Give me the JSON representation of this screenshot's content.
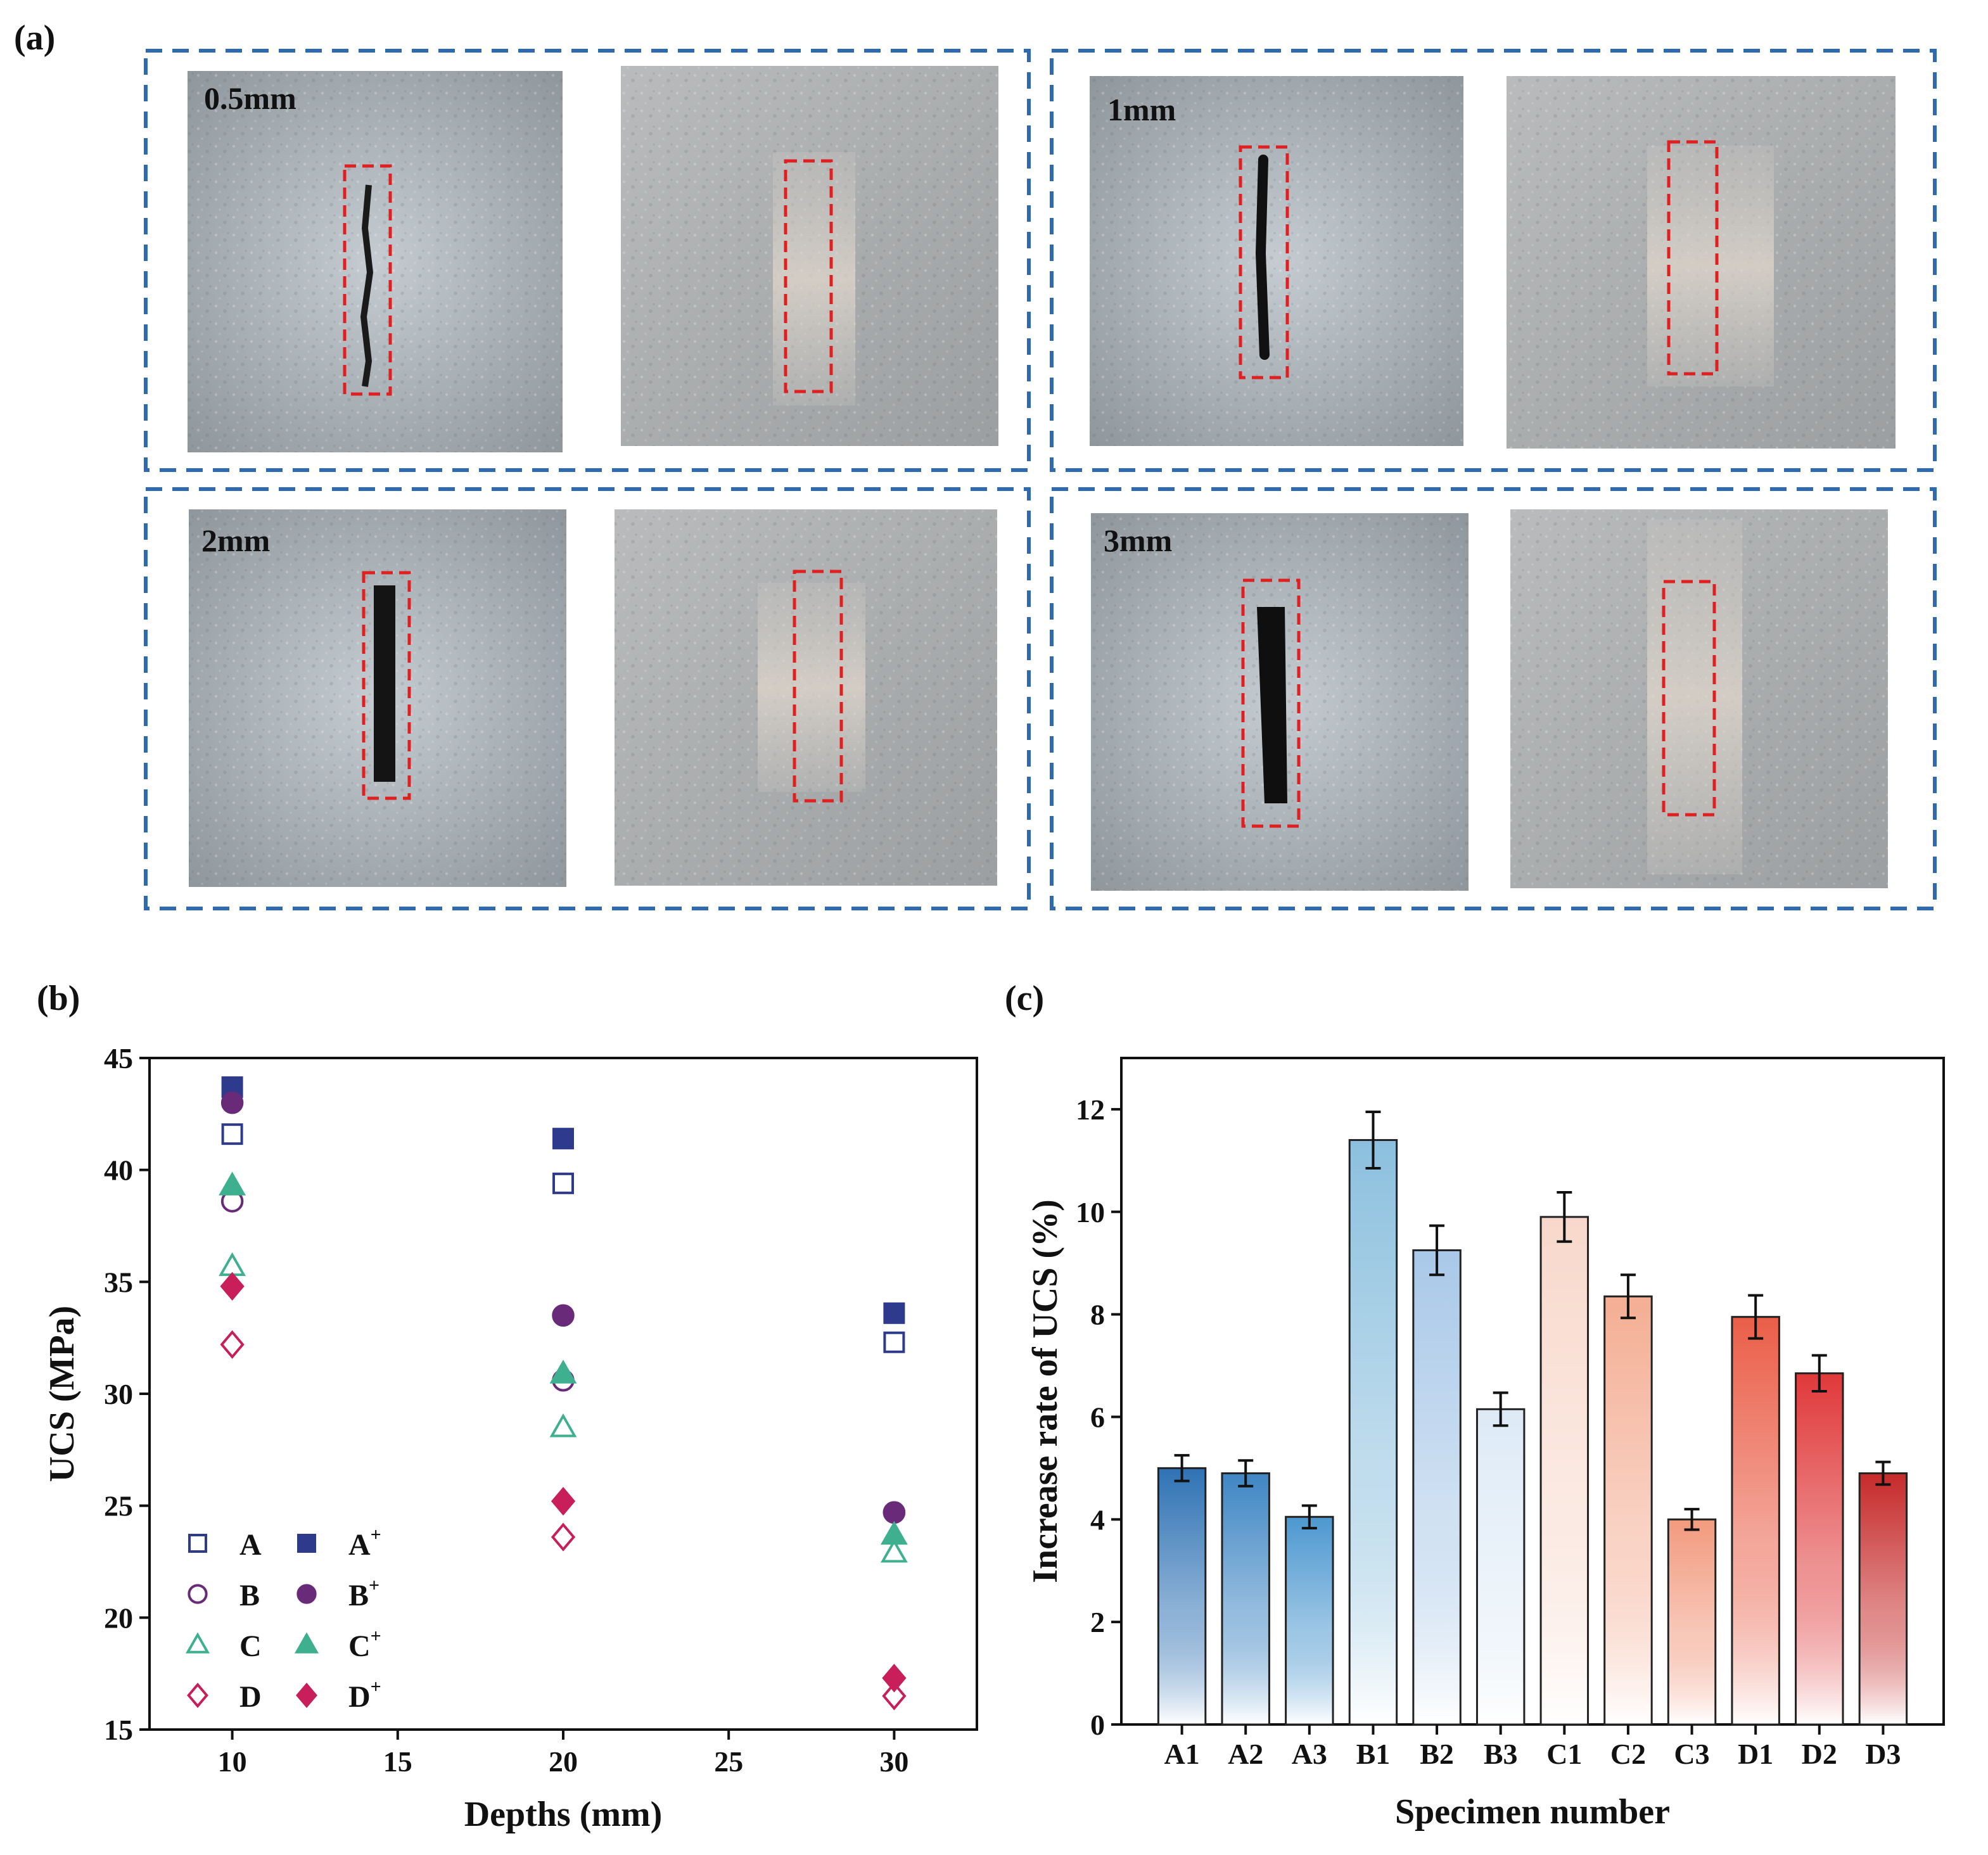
{
  "panels": {
    "a": {
      "letter": "(a)"
    },
    "b": {
      "letter": "(b)"
    },
    "c": {
      "letter": "(c)"
    }
  },
  "photos": [
    {
      "label": "0.5mm"
    },
    {
      "label": "1mm"
    },
    {
      "label": "2mm"
    },
    {
      "label": "3mm"
    }
  ],
  "colors": {
    "A": "#2e3a8c",
    "B": "#6a2a7a",
    "C": "#3fb08f",
    "D": "#c81e5a",
    "panel_border": "#2f6ab0",
    "crack_box": "#e02020"
  },
  "chart_data": [
    {
      "type": "scatter",
      "xlabel": "Depths (mm)",
      "ylabel": "UCS (MPa)",
      "xlim": [
        7.5,
        32.5
      ],
      "ylim": [
        15,
        45
      ],
      "x_ticks": [
        10,
        15,
        20,
        25,
        30
      ],
      "y_ticks": [
        15,
        20,
        25,
        30,
        35,
        40,
        45
      ],
      "legend_position": "bottom-left",
      "series": [
        {
          "name": "A",
          "sup": "",
          "marker": "square",
          "filled": false,
          "color": "#2e3a8c",
          "x": [
            10,
            20,
            30
          ],
          "y": [
            41.6,
            39.4,
            32.3
          ]
        },
        {
          "name": "A",
          "sup": "+",
          "marker": "square",
          "filled": true,
          "color": "#2e3a8c",
          "x": [
            10,
            20,
            30
          ],
          "y": [
            43.7,
            41.4,
            33.6
          ]
        },
        {
          "name": "B",
          "sup": "",
          "marker": "circle",
          "filled": false,
          "color": "#6a2a7a",
          "x": [
            10,
            20,
            30
          ],
          "y": [
            38.6,
            30.6,
            24.7
          ]
        },
        {
          "name": "B",
          "sup": "+",
          "marker": "circle",
          "filled": true,
          "color": "#6a2a7a",
          "x": [
            10,
            20,
            30
          ],
          "y": [
            43.0,
            33.5,
            24.7
          ]
        },
        {
          "name": "C",
          "sup": "",
          "marker": "triangle",
          "filled": false,
          "color": "#3fb08f",
          "x": [
            10,
            20,
            30
          ],
          "y": [
            35.7,
            28.5,
            22.9
          ]
        },
        {
          "name": "C",
          "sup": "+",
          "marker": "triangle",
          "filled": true,
          "color": "#3fb08f",
          "x": [
            10,
            20,
            30
          ],
          "y": [
            39.3,
            30.9,
            23.7
          ]
        },
        {
          "name": "D",
          "sup": "",
          "marker": "diamond",
          "filled": false,
          "color": "#c81e5a",
          "x": [
            10,
            20,
            30
          ],
          "y": [
            32.2,
            23.6,
            16.5
          ]
        },
        {
          "name": "D",
          "sup": "+",
          "marker": "diamond",
          "filled": true,
          "color": "#c81e5a",
          "x": [
            10,
            20,
            30
          ],
          "y": [
            34.8,
            25.2,
            17.3
          ]
        }
      ]
    },
    {
      "type": "bar",
      "xlabel": "Specimen number",
      "ylabel": "Increase rate of UCS (%)",
      "ylim": [
        0,
        13
      ],
      "y_ticks": [
        0,
        2,
        4,
        6,
        8,
        10,
        12
      ],
      "categories": [
        "A1",
        "A2",
        "A3",
        "B1",
        "B2",
        "B3",
        "C1",
        "C2",
        "C3",
        "D1",
        "D2",
        "D3"
      ],
      "values": [
        5.0,
        4.9,
        4.05,
        11.4,
        9.25,
        6.15,
        9.9,
        8.35,
        4.0,
        7.95,
        6.85,
        4.9
      ],
      "errors": [
        0.25,
        0.25,
        0.22,
        0.55,
        0.48,
        0.32,
        0.48,
        0.42,
        0.2,
        0.42,
        0.35,
        0.22
      ],
      "group_colors": {
        "A": "#2f72b4",
        "B": "#8cc0de",
        "C": "#f6c2b0",
        "D": "#c62a2a"
      },
      "bar_top_colors": [
        "#2f72b4",
        "#3f86c4",
        "#4d98d0",
        "#8cc0de",
        "#a9c8e8",
        "#ddeaf6",
        "#f8d8cb",
        "#f4ae94",
        "#f29a7e",
        "#ea5e48",
        "#e0393a",
        "#c62a2a"
      ]
    }
  ]
}
